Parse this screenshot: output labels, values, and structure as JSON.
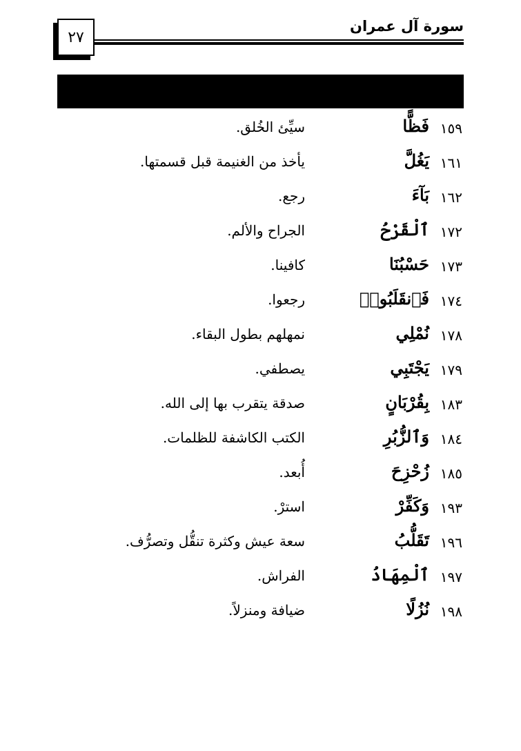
{
  "header": {
    "surah_title": "سورة آل عمران",
    "page_number": "٢٧"
  },
  "entries": [
    {
      "verse": "١٥٩",
      "word": "فَظًّا",
      "meaning": "سيِّئ الخُلق."
    },
    {
      "verse": "١٦١",
      "word": "يَغُلَّ",
      "meaning": "يأخذ من الغنيمة قبل قسمتها."
    },
    {
      "verse": "١٦٢",
      "word": "بَآءَ",
      "meaning": "رجع."
    },
    {
      "verse": "١٧٢",
      "word": "ٱلْقَرْحُ",
      "meaning": "الجراح والألم."
    },
    {
      "verse": "١٧٣",
      "word": "حَسْبُنَا",
      "meaning": "كافينا."
    },
    {
      "verse": "١٧٤",
      "word": "فَٱنقَلَبُوا۟",
      "meaning": "رجعوا."
    },
    {
      "verse": "١٧٨",
      "word": "نُمْلِي",
      "meaning": "نمهلهم بطول البقاء."
    },
    {
      "verse": "١٧٩",
      "word": "يَجْتَبِي",
      "meaning": "يصطفي."
    },
    {
      "verse": "١٨٣",
      "word": "بِقُرْبَانٍ",
      "meaning": "صدقة يتقرب بها إلى الله."
    },
    {
      "verse": "١٨٤",
      "word": "وَٱلزُّبُرِ",
      "meaning": "الكتب الكاشفة للظلمات."
    },
    {
      "verse": "١٨٥",
      "word": "زُحْزِحَ",
      "meaning": "أُبعد."
    },
    {
      "verse": "١٩٣",
      "word": "وَكَفِّرْ",
      "meaning": "استرْ."
    },
    {
      "verse": "١٩٦",
      "word": "تَقَلُّبُ",
      "meaning": "سعة عيش وكثرة تنقُّل وتصرُّف."
    },
    {
      "verse": "١٩٧",
      "word": "ٱلْمِهَادُ",
      "meaning": "الفراش."
    },
    {
      "verse": "١٩٨",
      "word": "نُزُلًا",
      "meaning": "ضيافة ومنزلاً."
    }
  ]
}
